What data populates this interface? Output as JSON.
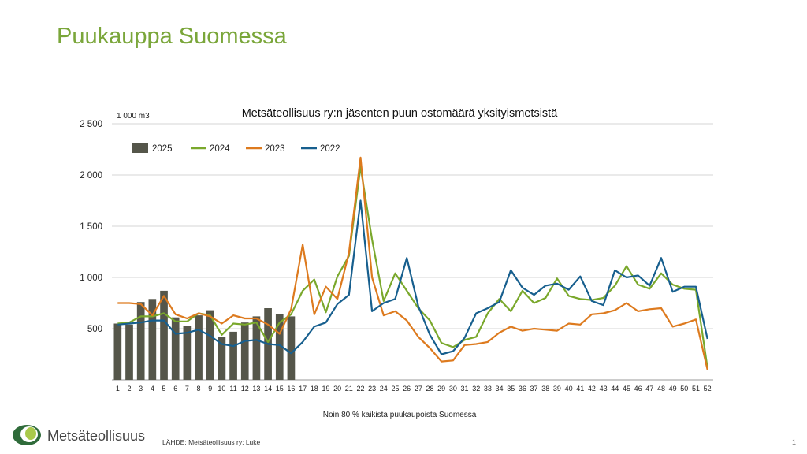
{
  "slide": {
    "title": "Puukauppa Suomessa",
    "brand": "Metsäteollisuus",
    "source": "LÄHDE: Metsäteollisuus ry; Luke",
    "page_number": "1"
  },
  "colors": {
    "title": "#7aa63a",
    "s2025": "#55564a",
    "s2024": "#7aa82c",
    "s2023": "#dd7a1e",
    "s2022": "#175f8e"
  },
  "chart_data": {
    "type": "bar+line",
    "title": "Metsäteollisuus ry:n jäsenten puun ostomäärä yksityismetsistä",
    "unit_label": "1 000 m3",
    "xlabel": "Noin 80 % kaikista puukaupoista Suomessa",
    "ylim": [
      0,
      2500
    ],
    "yticks": [
      0,
      500,
      1000,
      1500,
      2000,
      2500
    ],
    "ytick_labels": [
      "",
      "500",
      "1 000",
      "1 500",
      "2 000",
      "2 500"
    ],
    "grid": true,
    "legend_position": "top-left",
    "x": [
      1,
      2,
      3,
      4,
      5,
      6,
      7,
      8,
      9,
      10,
      11,
      12,
      13,
      14,
      15,
      16,
      17,
      18,
      19,
      20,
      21,
      22,
      23,
      24,
      25,
      26,
      27,
      28,
      29,
      30,
      31,
      32,
      33,
      34,
      35,
      36,
      37,
      38,
      39,
      40,
      41,
      42,
      43,
      44,
      45,
      46,
      47,
      48,
      49,
      50,
      51,
      52
    ],
    "bars": {
      "name": "2025",
      "values": [
        550,
        540,
        760,
        790,
        870,
        610,
        530,
        630,
        680,
        420,
        470,
        560,
        620,
        700,
        640,
        620
      ]
    },
    "series": [
      {
        "name": "2024",
        "values": [
          550,
          560,
          620,
          620,
          650,
          570,
          570,
          650,
          630,
          440,
          550,
          540,
          560,
          370,
          560,
          640,
          870,
          980,
          660,
          1010,
          1210,
          2080,
          1370,
          770,
          1040,
          870,
          700,
          580,
          360,
          320,
          390,
          420,
          650,
          790,
          670,
          870,
          750,
          800,
          990,
          820,
          790,
          780,
          800,
          920,
          1110,
          930,
          890,
          1040,
          930,
          890,
          880,
          120
        ]
      },
      {
        "name": "2023",
        "values": [
          750,
          750,
          740,
          630,
          820,
          640,
          600,
          650,
          620,
          550,
          630,
          600,
          600,
          540,
          450,
          690,
          1320,
          640,
          910,
          790,
          1240,
          2170,
          1000,
          630,
          670,
          580,
          420,
          310,
          180,
          190,
          340,
          350,
          370,
          460,
          520,
          480,
          500,
          490,
          480,
          550,
          540,
          640,
          650,
          680,
          750,
          670,
          690,
          700,
          520,
          550,
          590,
          100
        ]
      },
      {
        "name": "2022",
        "values": [
          540,
          550,
          560,
          580,
          580,
          450,
          460,
          490,
          430,
          350,
          330,
          380,
          390,
          350,
          340,
          260,
          370,
          520,
          560,
          740,
          830,
          1750,
          670,
          750,
          790,
          1190,
          720,
          440,
          250,
          280,
          410,
          650,
          700,
          760,
          1070,
          900,
          830,
          920,
          940,
          880,
          1010,
          770,
          730,
          1070,
          1000,
          1020,
          920,
          1190,
          860,
          910,
          910,
          400
        ]
      }
    ]
  }
}
